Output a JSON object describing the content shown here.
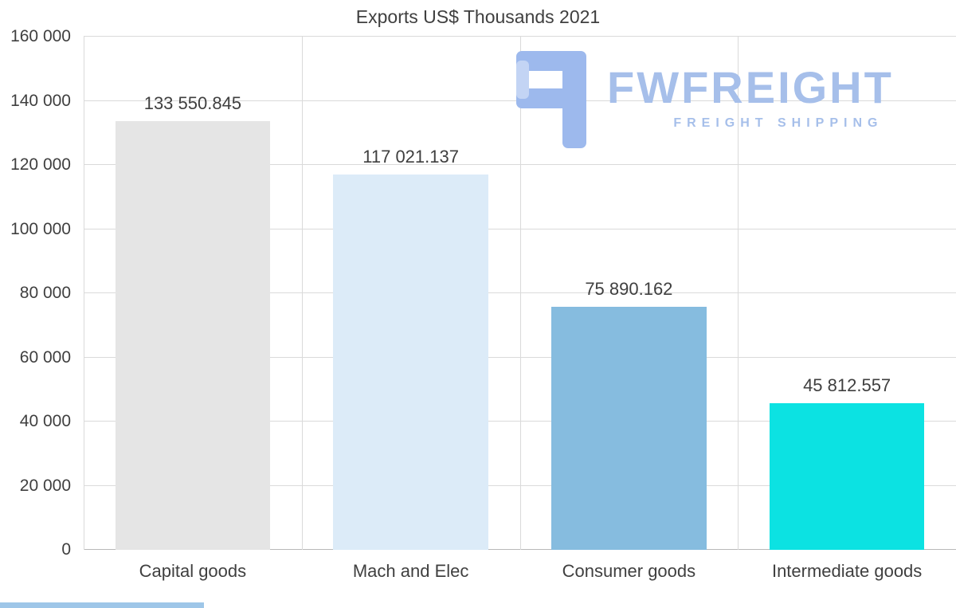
{
  "title": "Exports US$ Thousands 2021",
  "logo": {
    "name": "FWFREIGHT",
    "tagline": "FREIGHT SHIPPING",
    "color": "#a6bfea"
  },
  "chart_data": {
    "type": "bar",
    "title": "Exports US$ Thousands 2021",
    "categories": [
      "Capital goods",
      "Mach and Elec",
      "Consumer goods",
      "Intermediate goods"
    ],
    "values": [
      133550.845,
      117021.137,
      75890.162,
      45812.557
    ],
    "value_labels": [
      "133 550.845",
      "117 021.137",
      "75 890.162",
      "45 812.557"
    ],
    "bar_colors": [
      "#e5e5e5",
      "#dcebf8",
      "#86bcdf",
      "#0ce2e2"
    ],
    "xlabel": "",
    "ylabel": "",
    "ylim": [
      0,
      160000
    ],
    "ytick_interval": 20000,
    "ytick_labels": [
      "0",
      "20 000",
      "40 000",
      "60 000",
      "80 000",
      "100 000",
      "120 000",
      "140 000",
      "160 000"
    ],
    "grid": "horizontal gridlines plus vertical category separators",
    "legend": "none"
  }
}
